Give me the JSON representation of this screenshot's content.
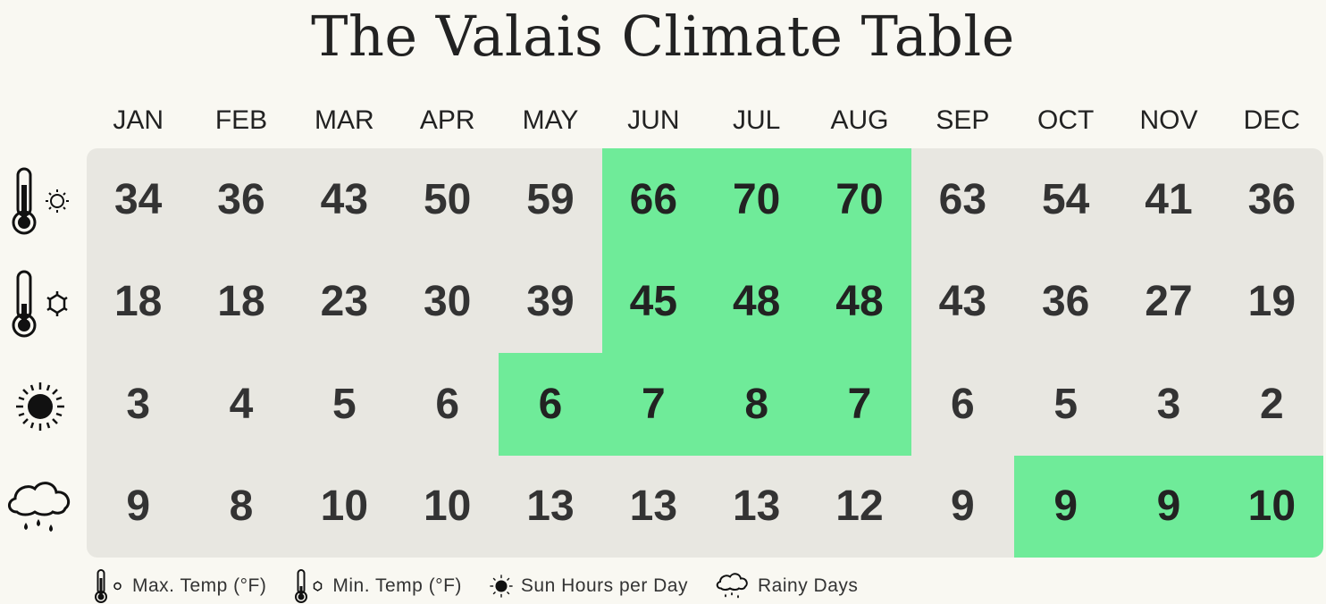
{
  "title": "The Valais Climate Table",
  "months": [
    "JAN",
    "FEB",
    "MAR",
    "APR",
    "MAY",
    "JUN",
    "JUL",
    "AUG",
    "SEP",
    "OCT",
    "NOV",
    "DEC"
  ],
  "colors": {
    "background": "#f9f8f2",
    "table": "#e8e7e1",
    "highlight": "#6feb99",
    "text": "#333333"
  },
  "rows": [
    {
      "name": "max-temp",
      "icon": "thermometer-sun-icon",
      "values": [
        34,
        36,
        43,
        50,
        59,
        66,
        70,
        70,
        63,
        54,
        41,
        36
      ],
      "highlight": [
        5,
        6,
        7
      ]
    },
    {
      "name": "min-temp",
      "icon": "thermometer-snowflake-icon",
      "values": [
        18,
        18,
        23,
        30,
        39,
        45,
        48,
        48,
        43,
        36,
        27,
        19
      ],
      "highlight": [
        5,
        6,
        7
      ]
    },
    {
      "name": "sun-hours",
      "icon": "sun-icon",
      "values": [
        3,
        4,
        5,
        6,
        6,
        7,
        8,
        7,
        6,
        5,
        3,
        2
      ],
      "highlight": [
        4,
        5,
        6,
        7
      ]
    },
    {
      "name": "rainy-days",
      "icon": "rain-cloud-icon",
      "values": [
        9,
        8,
        10,
        10,
        13,
        13,
        13,
        12,
        9,
        9,
        9,
        10
      ],
      "highlight": [
        9,
        10,
        11
      ]
    }
  ],
  "legend": [
    {
      "icon": "thermometer-sun-icon",
      "label": "Max. Temp (°F)"
    },
    {
      "icon": "thermometer-snowflake-icon",
      "label": "Min. Temp (°F)"
    },
    {
      "icon": "sun-icon",
      "label": "Sun Hours per Day"
    },
    {
      "icon": "rain-cloud-icon",
      "label": "Rainy Days"
    }
  ],
  "chart_data": {
    "type": "table",
    "title": "The Valais Climate Table",
    "categories": [
      "JAN",
      "FEB",
      "MAR",
      "APR",
      "MAY",
      "JUN",
      "JUL",
      "AUG",
      "SEP",
      "OCT",
      "NOV",
      "DEC"
    ],
    "series": [
      {
        "name": "Max. Temp (°F)",
        "values": [
          34,
          36,
          43,
          50,
          59,
          66,
          70,
          70,
          63,
          54,
          41,
          36
        ]
      },
      {
        "name": "Min. Temp (°F)",
        "values": [
          18,
          18,
          23,
          30,
          39,
          45,
          48,
          48,
          43,
          36,
          27,
          19
        ]
      },
      {
        "name": "Sun Hours per Day",
        "values": [
          3,
          4,
          5,
          6,
          6,
          7,
          8,
          7,
          6,
          5,
          3,
          2
        ]
      },
      {
        "name": "Rainy Days",
        "values": [
          9,
          8,
          10,
          10,
          13,
          13,
          13,
          12,
          9,
          9,
          9,
          10
        ]
      }
    ],
    "highlighted_cells": {
      "Max. Temp (°F)": [
        "JUN",
        "JUL",
        "AUG"
      ],
      "Min. Temp (°F)": [
        "JUN",
        "JUL",
        "AUG"
      ],
      "Sun Hours per Day": [
        "MAY",
        "JUN",
        "JUL",
        "AUG"
      ],
      "Rainy Days": [
        "OCT",
        "NOV",
        "DEC"
      ]
    },
    "legend_position": "bottom"
  }
}
